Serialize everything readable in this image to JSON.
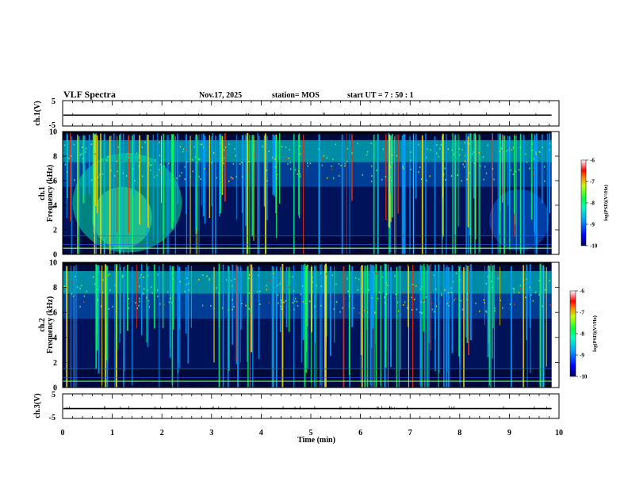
{
  "header": {
    "title": "VLF Spectra",
    "date": "Nov.17, 2025",
    "station": "station= MOS",
    "start": "start  UT  =   7 : 50 : 1"
  },
  "chart_data": [
    {
      "type": "line",
      "name": "ch1-voltage",
      "ylabel": "ch.1(V)",
      "ylim": [
        -5,
        5
      ],
      "yticks": [
        "5",
        "-5"
      ],
      "trace_level": -0.7
    },
    {
      "type": "heatmap",
      "name": "ch1-spectrogram",
      "ylabel": "ch.1\nFrequency (kHz)",
      "ylim": [
        0,
        10
      ],
      "yticks": [
        "0",
        "2",
        "4",
        "6",
        "8",
        "10"
      ],
      "xlim": [
        0,
        10
      ],
      "data_end_min": 9.85,
      "colorbar": {
        "label": "log(PSD)(V²/Hz)",
        "range": [
          -10,
          -6
        ],
        "ticks": [
          "-6",
          "-7",
          "-8",
          "-9",
          "-10"
        ]
      }
    },
    {
      "type": "heatmap",
      "name": "ch2-spectrogram",
      "ylabel": "ch.2\nFrequency (kHz)",
      "ylim": [
        0,
        10
      ],
      "yticks": [
        "0",
        "2",
        "4",
        "6",
        "8",
        "10"
      ],
      "xlim": [
        0,
        10
      ],
      "data_end_min": 9.85,
      "colorbar": {
        "label": "log(PSD)(V²/Hz)",
        "range": [
          -10,
          -6
        ],
        "ticks": [
          "-6",
          "-7",
          "-8",
          "-9",
          "-10"
        ]
      }
    },
    {
      "type": "line",
      "name": "ch3-voltage",
      "ylabel": "ch.3(V)",
      "ylim": [
        -5,
        5
      ],
      "yticks": [
        "5",
        "-5"
      ],
      "trace_level": -1.0
    }
  ],
  "xaxis": {
    "label": "Time  (min)",
    "range": [
      0,
      10
    ],
    "ticks": [
      "0",
      "1",
      "2",
      "3",
      "4",
      "5",
      "6",
      "7",
      "8",
      "9",
      "10"
    ]
  }
}
